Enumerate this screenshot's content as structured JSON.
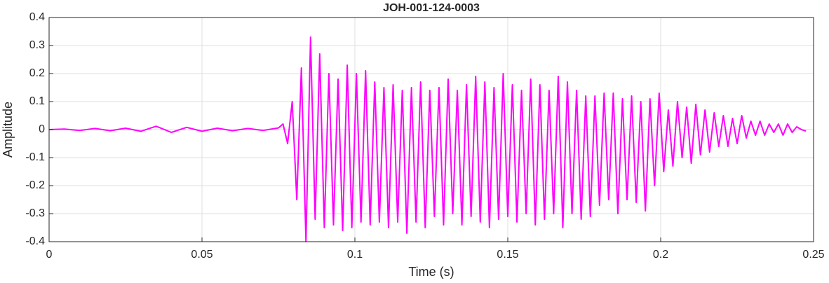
{
  "chart_data": {
    "type": "line",
    "title": "JOH-001-124-0003",
    "x_label": "Time (s)",
    "y_label": "Amplitude",
    "x": [
      0,
      0.005,
      0.01,
      0.015,
      0.02,
      0.025,
      0.03,
      0.035,
      0.04,
      0.045,
      0.05,
      0.055,
      0.06,
      0.065,
      0.07,
      0.075,
      0.0765,
      0.078,
      0.0795,
      0.081,
      0.0825,
      0.084,
      0.0855,
      0.087,
      0.0885,
      0.09,
      0.0915,
      0.093,
      0.0945,
      0.096,
      0.0975,
      0.099,
      0.1005,
      0.102,
      0.1035,
      0.105,
      0.1065,
      0.108,
      0.1095,
      0.111,
      0.1125,
      0.114,
      0.1155,
      0.117,
      0.1185,
      0.12,
      0.1215,
      0.123,
      0.1245,
      0.126,
      0.1275,
      0.129,
      0.1305,
      0.132,
      0.1335,
      0.135,
      0.1365,
      0.138,
      0.1395,
      0.141,
      0.1425,
      0.144,
      0.1455,
      0.147,
      0.1485,
      0.15,
      0.1515,
      0.153,
      0.1545,
      0.156,
      0.1575,
      0.159,
      0.1605,
      0.162,
      0.1635,
      0.165,
      0.1665,
      0.168,
      0.1695,
      0.171,
      0.1725,
      0.174,
      0.1755,
      0.177,
      0.1785,
      0.18,
      0.1815,
      0.183,
      0.1845,
      0.186,
      0.1875,
      0.189,
      0.1905,
      0.192,
      0.1935,
      0.195,
      0.1965,
      0.198,
      0.1995,
      0.201,
      0.2025,
      0.204,
      0.2055,
      0.207,
      0.2085,
      0.21,
      0.2115,
      0.213,
      0.2145,
      0.216,
      0.2175,
      0.219,
      0.2205,
      0.222,
      0.2235,
      0.225,
      0.2265,
      0.228,
      0.2295,
      0.231,
      0.2325,
      0.234,
      0.2355,
      0.237,
      0.2385,
      0.24,
      0.2415,
      0.243,
      0.2445,
      0.246,
      0.2475
    ],
    "series": [
      {
        "color": "#ff00ff",
        "values": [
          0,
          0.002,
          -0.003,
          0.004,
          -0.004,
          0.005,
          -0.006,
          0.012,
          -0.01,
          0.008,
          -0.006,
          0.005,
          -0.004,
          0.004,
          -0.003,
          0.006,
          0.02,
          -0.05,
          0.1,
          -0.25,
          0.22,
          -0.4,
          0.33,
          -0.32,
          0.27,
          -0.35,
          0.2,
          -0.34,
          0.18,
          -0.36,
          0.23,
          -0.35,
          0.2,
          -0.33,
          0.21,
          -0.34,
          0.17,
          -0.33,
          0.15,
          -0.35,
          0.16,
          -0.33,
          0.14,
          -0.37,
          0.15,
          -0.33,
          0.17,
          -0.35,
          0.14,
          -0.31,
          0.15,
          -0.34,
          0.18,
          -0.3,
          0.14,
          -0.34,
          0.16,
          -0.31,
          0.19,
          -0.33,
          0.17,
          -0.35,
          0.15,
          -0.32,
          0.2,
          -0.31,
          0.16,
          -0.33,
          0.14,
          -0.3,
          0.18,
          -0.34,
          0.16,
          -0.32,
          0.14,
          -0.3,
          0.19,
          -0.35,
          0.17,
          -0.3,
          0.14,
          -0.32,
          0.12,
          -0.31,
          0.12,
          -0.27,
          0.13,
          -0.25,
          0.13,
          -0.3,
          0.11,
          -0.25,
          0.12,
          -0.26,
          0.1,
          -0.29,
          0.11,
          -0.2,
          0.13,
          -0.15,
          0.07,
          -0.13,
          0.1,
          -0.1,
          0.08,
          -0.12,
          0.09,
          -0.09,
          0.07,
          -0.08,
          0.06,
          -0.06,
          0.05,
          -0.06,
          0.04,
          -0.05,
          0.05,
          -0.03,
          0.03,
          -0.02,
          0.03,
          -0.02,
          0.02,
          -0.01,
          0.02,
          -0.02,
          0.02,
          -0.01,
          0.01,
          0,
          -0.005
        ]
      }
    ],
    "xlim": [
      0,
      0.25
    ],
    "xticks": [
      0,
      0.05,
      0.1,
      0.15,
      0.2,
      0.25
    ],
    "ylim": [
      -0.4,
      0.4
    ],
    "yticks": [
      -0.4,
      -0.3,
      -0.2,
      -0.1,
      0,
      0.1,
      0.2,
      0.3,
      0.4
    ],
    "grid": true
  }
}
